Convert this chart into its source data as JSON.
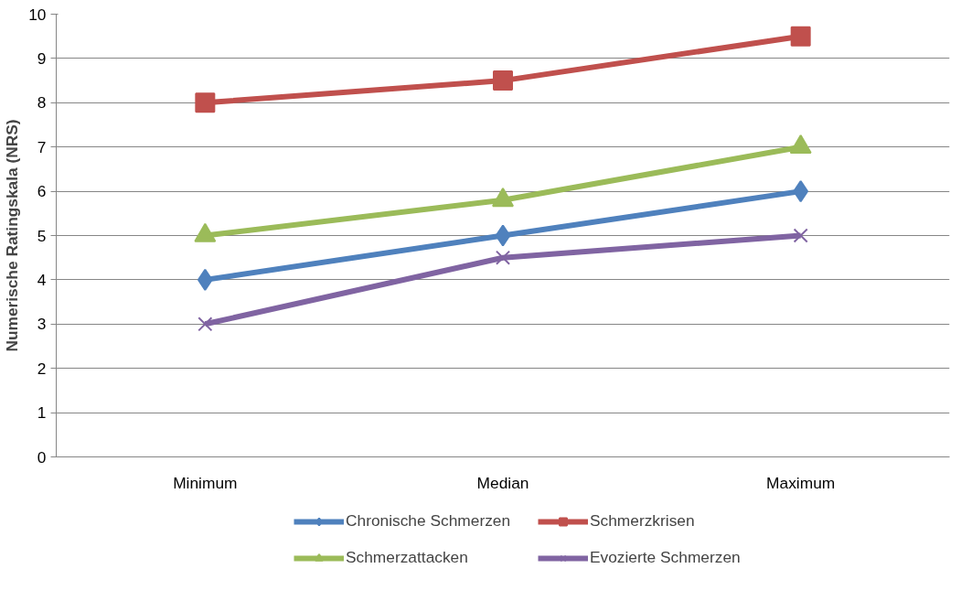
{
  "chart_data": {
    "type": "line",
    "ylabel": "Numerische Ratingskala (NRS)",
    "categories": [
      "Minimum",
      "Median",
      "Maximum"
    ],
    "series": [
      {
        "name": "Chronische Schmerzen",
        "color": "#4f81bd",
        "marker": "diamond",
        "values": [
          4,
          5,
          6
        ]
      },
      {
        "name": "Schmerzkrisen",
        "color": "#c0504d",
        "marker": "square",
        "values": [
          8,
          8.5,
          9.5
        ]
      },
      {
        "name": "Schmerzattacken",
        "color": "#9bbb59",
        "marker": "triangle",
        "values": [
          5,
          5.8,
          7
        ]
      },
      {
        "name": "Evozierte Schmerzen",
        "color": "#8064a2",
        "marker": "cross",
        "values": [
          3,
          4.5,
          5
        ]
      }
    ],
    "ylim": [
      0,
      10
    ],
    "yticks": [
      0,
      1,
      2,
      3,
      4,
      5,
      6,
      7,
      8,
      9,
      10
    ],
    "grid": "y",
    "legend": "bottom",
    "line_style": "solid"
  }
}
